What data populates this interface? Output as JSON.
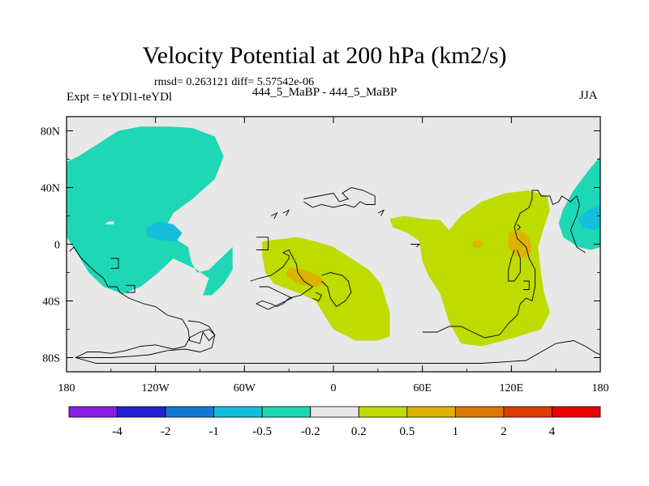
{
  "chart_data": {
    "type": "contour-map",
    "title": "Velocity Potential at 200 hPa (km2/s)",
    "stats": "rmsd= 0.263121 diff= 5.57542e-06",
    "subtitle": "444_5_MaBP - 444_5_MaBP",
    "experiment": "Expt = teYDl1-teYDl",
    "season": "JJA",
    "xlim": [
      -180,
      180
    ],
    "ylim": [
      -90,
      90
    ],
    "x_ticks": [
      {
        "value": -180,
        "label": "180"
      },
      {
        "value": -120,
        "label": "120W"
      },
      {
        "value": -60,
        "label": "60W"
      },
      {
        "value": 0,
        "label": "0"
      },
      {
        "value": 60,
        "label": "60E"
      },
      {
        "value": 120,
        "label": "120E"
      },
      {
        "value": 180,
        "label": "180"
      }
    ],
    "y_ticks": [
      {
        "value": 80,
        "label": "80N"
      },
      {
        "value": 40,
        "label": "40N"
      },
      {
        "value": 0,
        "label": "0"
      },
      {
        "value": -40,
        "label": "40S"
      },
      {
        "value": -80,
        "label": "80S"
      }
    ],
    "colorbar": {
      "colors": [
        "#8a1ee6",
        "#2323d2",
        "#1478d2",
        "#14bedc",
        "#1ed7b4",
        "#e8e8e8",
        "#bedc00",
        "#dcb400",
        "#dc7800",
        "#dc3c00",
        "#e60000"
      ],
      "labels": [
        "-4",
        "-2",
        "-1",
        "-0.5",
        "-0.2",
        "0.2",
        "0.5",
        "1",
        "2",
        "4"
      ]
    },
    "regions": [
      {
        "level": "-0.5 to -0.2",
        "color": "#1ed7b4",
        "points": [
          [
            -180,
            58
          ],
          [
            -172,
            62
          ],
          [
            -160,
            70
          ],
          [
            -145,
            80
          ],
          [
            -130,
            83
          ],
          [
            -110,
            83
          ],
          [
            -95,
            82
          ],
          [
            -80,
            76
          ],
          [
            -74,
            62
          ],
          [
            -80,
            46
          ],
          [
            -95,
            32
          ],
          [
            -108,
            22
          ],
          [
            -114,
            10
          ],
          [
            -104,
            2
          ],
          [
            -98,
            -2
          ],
          [
            -96,
            -12
          ],
          [
            -92,
            -20
          ],
          [
            -84,
            -18
          ],
          [
            -76,
            -10
          ],
          [
            -68,
            -2
          ],
          [
            -68,
            -18
          ],
          [
            -74,
            -28
          ],
          [
            -82,
            -36
          ],
          [
            -88,
            -36
          ],
          [
            -84,
            -24
          ],
          [
            -92,
            -18
          ],
          [
            -108,
            -10
          ],
          [
            -118,
            -20
          ],
          [
            -130,
            -30
          ],
          [
            -142,
            -35
          ],
          [
            -155,
            -30
          ],
          [
            -165,
            -20
          ],
          [
            -172,
            -8
          ],
          [
            -178,
            2
          ],
          [
            -180,
            5
          ]
        ]
      },
      {
        "level": "-1 to -0.5",
        "color": "#14bedc",
        "points": [
          [
            -126,
            12
          ],
          [
            -118,
            16
          ],
          [
            -108,
            14
          ],
          [
            -102,
            8
          ],
          [
            -106,
            2
          ],
          [
            -118,
            3
          ],
          [
            -126,
            6
          ]
        ]
      },
      {
        "level": "-0.2 to 0.2",
        "color": "#e8e8e8",
        "points": [
          [
            -154,
            14
          ],
          [
            -152,
            16
          ],
          [
            -148,
            16
          ],
          [
            -148,
            14
          ]
        ]
      },
      {
        "level": "-0.5 to -0.2",
        "color": "#1ed7b4",
        "points": [
          [
            180,
            62
          ],
          [
            172,
            52
          ],
          [
            162,
            38
          ],
          [
            155,
            25
          ],
          [
            152,
            15
          ],
          [
            155,
            5
          ],
          [
            165,
            -2
          ],
          [
            174,
            -4
          ],
          [
            180,
            -2
          ]
        ]
      },
      {
        "level": "-1 to -0.5",
        "color": "#14bedc",
        "points": [
          [
            180,
            28
          ],
          [
            172,
            24
          ],
          [
            165,
            18
          ],
          [
            168,
            12
          ],
          [
            175,
            10
          ],
          [
            180,
            12
          ]
        ]
      },
      {
        "level": "0.2 to 0.5",
        "color": "#bedc00",
        "points": [
          [
            -48,
            2
          ],
          [
            -40,
            3
          ],
          [
            -25,
            5
          ],
          [
            -12,
            2
          ],
          [
            0,
            -2
          ],
          [
            12,
            -10
          ],
          [
            24,
            -18
          ],
          [
            32,
            -28
          ],
          [
            38,
            -48
          ],
          [
            38,
            -65
          ],
          [
            30,
            -68
          ],
          [
            15,
            -68
          ],
          [
            0,
            -60
          ],
          [
            -5,
            -52
          ],
          [
            -12,
            -40
          ],
          [
            -22,
            -35
          ],
          [
            -30,
            -32
          ],
          [
            -40,
            -28
          ],
          [
            -46,
            -20
          ],
          [
            -48,
            -8
          ]
        ]
      },
      {
        "level": "0.5 to 1",
        "color": "#dcb400",
        "points": [
          [
            -30,
            -16
          ],
          [
            -20,
            -18
          ],
          [
            -10,
            -22
          ],
          [
            -5,
            -28
          ],
          [
            -12,
            -30
          ],
          [
            -24,
            -28
          ],
          [
            -32,
            -22
          ]
        ]
      },
      {
        "level": "0.2 to 0.5",
        "color": "#bedc00",
        "points": [
          [
            38,
            18
          ],
          [
            48,
            20
          ],
          [
            60,
            18
          ],
          [
            72,
            17
          ],
          [
            78,
            10
          ],
          [
            86,
            20
          ],
          [
            100,
            30
          ],
          [
            116,
            36
          ],
          [
            132,
            38
          ],
          [
            144,
            34
          ],
          [
            146,
            24
          ],
          [
            142,
            12
          ],
          [
            138,
            -2
          ],
          [
            140,
            -20
          ],
          [
            142,
            -34
          ],
          [
            146,
            -48
          ],
          [
            140,
            -60
          ],
          [
            122,
            -66
          ],
          [
            100,
            -72
          ],
          [
            86,
            -70
          ],
          [
            78,
            -55
          ],
          [
            72,
            -35
          ],
          [
            64,
            -22
          ],
          [
            60,
            -12
          ],
          [
            58,
            2
          ],
          [
            50,
            8
          ],
          [
            40,
            12
          ]
        ]
      },
      {
        "level": "0.5 to 1",
        "color": "#dcb400",
        "points": [
          [
            94,
            2
          ],
          [
            98,
            3
          ],
          [
            102,
            0
          ],
          [
            98,
            -3
          ],
          [
            94,
            -2
          ]
        ]
      },
      {
        "level": "0.5 to 1",
        "color": "#dcb400",
        "points": [
          [
            118,
            8
          ],
          [
            126,
            10
          ],
          [
            132,
            5
          ],
          [
            134,
            -4
          ],
          [
            130,
            -10
          ],
          [
            122,
            -8
          ],
          [
            118,
            -2
          ]
        ]
      }
    ],
    "coastlines": [
      [
        [
          -178,
          -5
        ],
        [
          -175,
          -2
        ],
        [
          -170,
          -10
        ],
        [
          -165,
          -15
        ],
        [
          -160,
          -20
        ],
        [
          -155,
          -24
        ],
        [
          -152,
          -30
        ],
        [
          -146,
          -30
        ],
        [
          -144,
          -34
        ],
        [
          -138,
          -38
        ],
        [
          -128,
          -42
        ],
        [
          -120,
          -44
        ],
        [
          -112,
          -50
        ],
        [
          -102,
          -53
        ],
        [
          -98,
          -60
        ],
        [
          -97,
          -68
        ],
        [
          -90,
          -70
        ],
        [
          -88,
          -62
        ],
        [
          -84,
          -68
        ],
        [
          -80,
          -64
        ],
        [
          -84,
          -58
        ],
        [
          -90,
          -55
        ],
        [
          -98,
          -54
        ]
      ],
      [
        [
          -150,
          -10
        ],
        [
          -145,
          -10
        ],
        [
          -145,
          -17
        ],
        [
          -150,
          -17
        ]
      ],
      [
        [
          -140,
          -29
        ],
        [
          -134,
          -29
        ],
        [
          -134,
          -34
        ],
        [
          -140,
          -34
        ]
      ],
      [
        [
          -174,
          -80
        ],
        [
          -166,
          -76
        ],
        [
          -158,
          -76
        ],
        [
          -150,
          -77
        ],
        [
          -140,
          -75
        ],
        [
          -130,
          -72
        ],
        [
          -120,
          -71
        ],
        [
          -108,
          -74
        ],
        [
          -100,
          -72
        ],
        [
          -97,
          -66
        ],
        [
          -90,
          -62
        ],
        [
          -84,
          -60
        ],
        [
          -80,
          -64
        ],
        [
          -82,
          -73
        ],
        [
          -90,
          -76
        ],
        [
          -100,
          -74
        ],
        [
          -112,
          -75
        ],
        [
          -124,
          -78
        ],
        [
          -136,
          -79
        ],
        [
          -150,
          -80
        ],
        [
          -165,
          -80
        ],
        [
          -174,
          -80
        ]
      ],
      [
        [
          -174,
          -80
        ],
        [
          -160,
          -84
        ],
        [
          -100,
          -84
        ],
        [
          -40,
          -84
        ],
        [
          0,
          -84
        ],
        [
          30,
          -84
        ],
        [
          70,
          -84
        ],
        [
          100,
          -84
        ],
        [
          130,
          -82
        ],
        [
          150,
          -70
        ],
        [
          162,
          -68
        ],
        [
          170,
          -72
        ],
        [
          176,
          -76
        ],
        [
          180,
          -78
        ]
      ],
      [
        [
          -52,
          5
        ],
        [
          -44,
          5
        ],
        [
          -44,
          -4
        ],
        [
          -52,
          -4
        ]
      ],
      [
        [
          -56,
          -26
        ],
        [
          -50,
          -24
        ],
        [
          -42,
          -22
        ],
        [
          -34,
          -16
        ],
        [
          -30,
          -10
        ],
        [
          -30,
          -8
        ],
        [
          -34,
          -6
        ],
        [
          -30,
          -4
        ],
        [
          -25,
          -14
        ],
        [
          -24,
          -20
        ],
        [
          -20,
          -26
        ],
        [
          -14,
          -30
        ],
        [
          -22,
          -36
        ],
        [
          -30,
          -38
        ],
        [
          -34,
          -42
        ],
        [
          -38,
          -44
        ],
        [
          -42,
          -42
        ],
        [
          -48,
          -40
        ],
        [
          -52,
          -42
        ],
        [
          -44,
          -46
        ],
        [
          -36,
          -42
        ],
        [
          -32,
          -40
        ],
        [
          -28,
          -38
        ],
        [
          -36,
          -34
        ],
        [
          -44,
          -30
        ],
        [
          -50,
          -30
        ]
      ],
      [
        [
          -8,
          -22
        ],
        [
          -2,
          -20
        ],
        [
          6,
          -22
        ],
        [
          10,
          -26
        ],
        [
          12,
          -34
        ],
        [
          8,
          -40
        ],
        [
          2,
          -44
        ],
        [
          -2,
          -38
        ],
        [
          -4,
          -30
        ],
        [
          -8,
          -26
        ]
      ],
      [
        [
          -12,
          -34
        ],
        [
          -8,
          -36
        ],
        [
          -10,
          -40
        ],
        [
          -14,
          -38
        ]
      ],
      [
        [
          -42,
          20
        ],
        [
          -38,
          22
        ],
        [
          -40,
          18
        ]
      ],
      [
        [
          -34,
          22
        ],
        [
          -30,
          24
        ],
        [
          -32,
          20
        ]
      ],
      [
        [
          -20,
          32
        ],
        [
          -10,
          34
        ],
        [
          0,
          36
        ],
        [
          4,
          30
        ],
        [
          10,
          32
        ],
        [
          6,
          36
        ],
        [
          12,
          40
        ],
        [
          20,
          38
        ],
        [
          28,
          34
        ],
        [
          28,
          28
        ],
        [
          22,
          28
        ],
        [
          18,
          30
        ],
        [
          14,
          26
        ],
        [
          8,
          28
        ],
        [
          0,
          26
        ],
        [
          -8,
          28
        ],
        [
          -14,
          26
        ],
        [
          -20,
          30
        ]
      ],
      [
        [
          30,
          22
        ],
        [
          34,
          24
        ],
        [
          32,
          20
        ]
      ],
      [
        [
          52,
          0
        ],
        [
          58,
          0
        ],
        [
          56,
          -2
        ]
      ],
      [
        [
          60,
          -62
        ],
        [
          70,
          -62
        ],
        [
          78,
          -58
        ],
        [
          86,
          -58
        ],
        [
          94,
          -62
        ],
        [
          102,
          -66
        ],
        [
          112,
          -64
        ],
        [
          118,
          -56
        ],
        [
          124,
          -50
        ],
        [
          126,
          -42
        ],
        [
          130,
          -38
        ],
        [
          134,
          -40
        ],
        [
          136,
          -30
        ],
        [
          136,
          -18
        ],
        [
          132,
          -10
        ],
        [
          130,
          -2
        ],
        [
          124,
          4
        ],
        [
          122,
          12
        ],
        [
          126,
          22
        ],
        [
          132,
          26
        ],
        [
          134,
          32
        ],
        [
          134,
          38
        ],
        [
          138,
          38
        ],
        [
          140,
          34
        ],
        [
          146,
          34
        ],
        [
          148,
          28
        ],
        [
          152,
          30
        ],
        [
          154,
          34
        ],
        [
          160,
          30
        ],
        [
          164,
          34
        ],
        [
          166,
          28
        ],
        [
          164,
          20
        ],
        [
          160,
          10
        ],
        [
          164,
          -2
        ],
        [
          170,
          -6
        ]
      ],
      [
        [
          124,
          -4
        ],
        [
          126,
          -10
        ],
        [
          126,
          -20
        ],
        [
          122,
          -26
        ],
        [
          118,
          -26
        ],
        [
          118,
          -18
        ],
        [
          120,
          -10
        ],
        [
          122,
          -4
        ]
      ],
      [
        [
          124,
          14
        ],
        [
          126,
          12
        ],
        [
          124,
          10
        ]
      ],
      [
        [
          128,
          -26
        ],
        [
          132,
          -26
        ],
        [
          132,
          -32
        ],
        [
          128,
          -32
        ]
      ]
    ]
  }
}
